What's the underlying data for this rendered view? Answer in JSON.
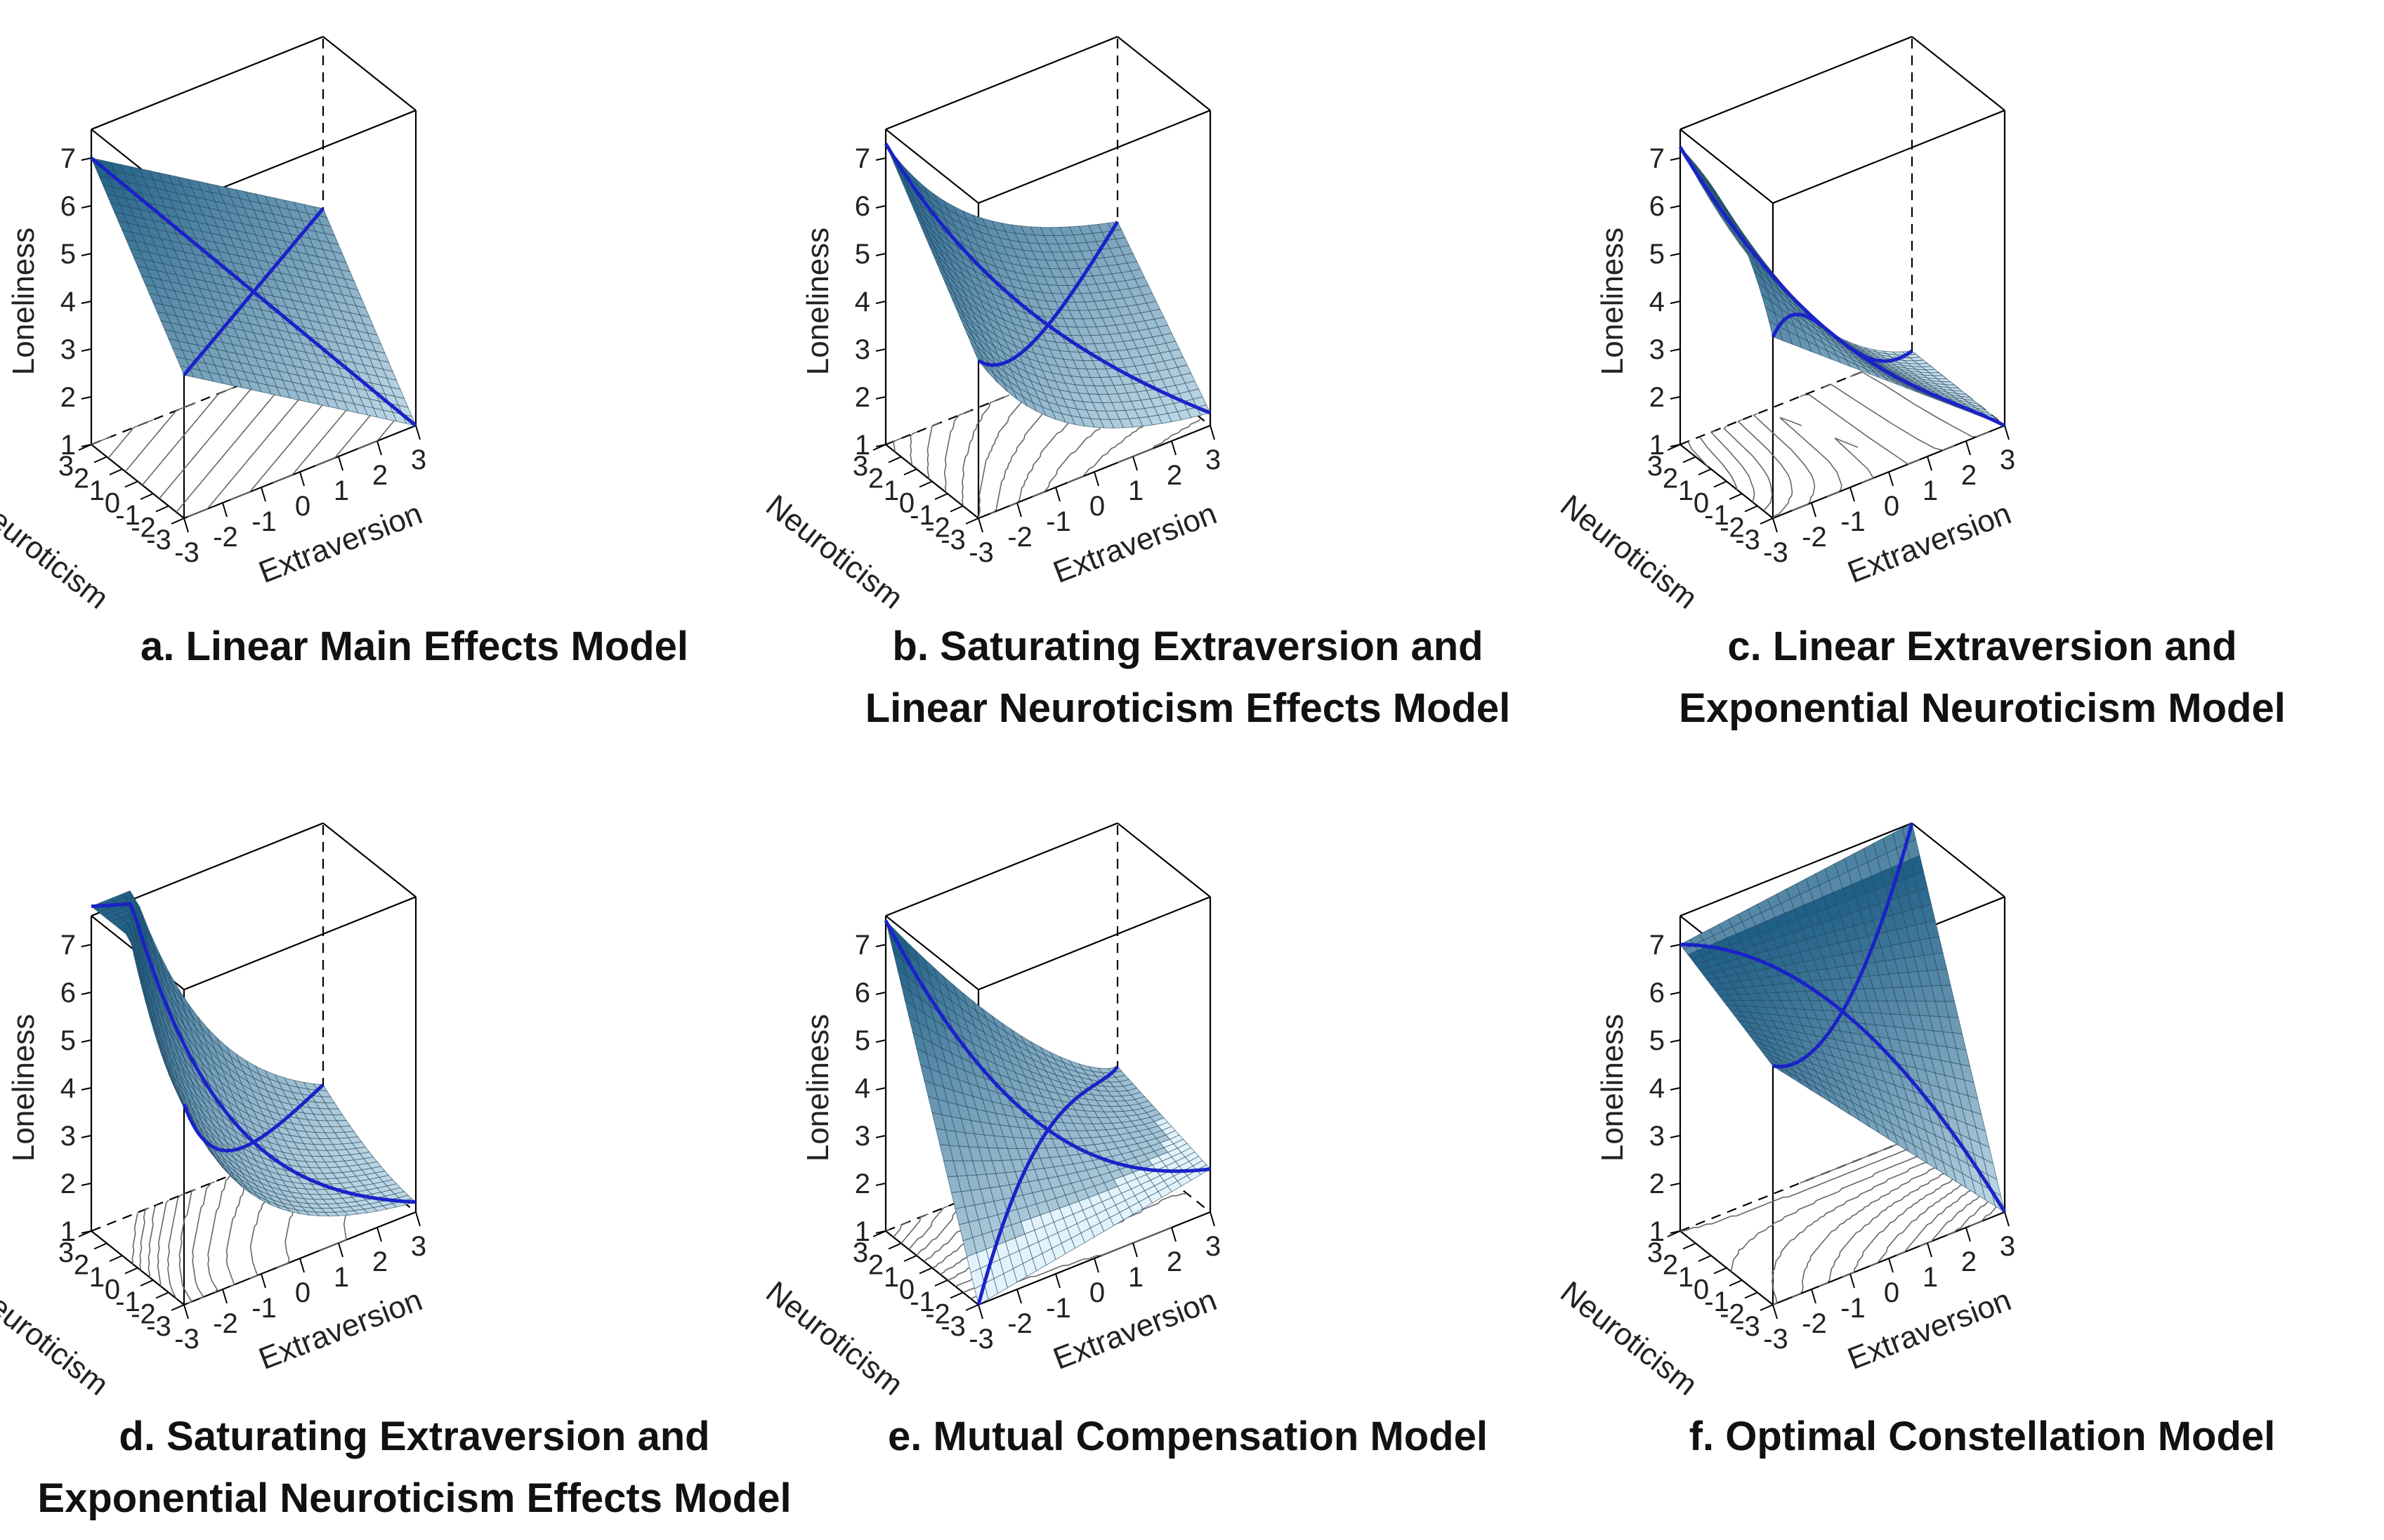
{
  "figure": {
    "panels_count": 6,
    "grid": "2x3"
  },
  "style": {
    "surface_dark": "#1f5f86",
    "surface_light": "#e3f3fb",
    "mesh_line": "#24475e",
    "curve_color": "#1a22c8",
    "box_line": "#000000",
    "contour_line": "#666666"
  },
  "chart_data": [
    {
      "type": "surface3d",
      "panel": "a",
      "title": "a. Linear Main Effects Model",
      "title_lines": [
        "a. Linear Main Effects Model"
      ],
      "zlabel": "Loneliness",
      "xlabel": "Extraversion",
      "ylabel": "Neuroticism",
      "z_ticks": [
        1,
        2,
        3,
        4,
        5,
        6,
        7
      ],
      "x_ticks": [
        -3,
        -2,
        -1,
        0,
        1,
        2,
        3
      ],
      "y_ticks": [
        3,
        2,
        1,
        0,
        -1,
        -2,
        -3
      ],
      "xlim": [
        -3,
        3
      ],
      "ylim": [
        -3,
        3
      ],
      "zlim": [
        1,
        7
      ],
      "model": "linear",
      "corner_values": {
        "E-3_N-3": 4.0,
        "E3_N-3": 1.0,
        "E-3_N3": 7.0,
        "E3_N3": 4.0
      }
    },
    {
      "type": "surface3d",
      "panel": "b",
      "title": "b. Saturating Extraversion and Linear Neuroticism Effects Model",
      "title_lines": [
        "b. Saturating Extraversion and",
        "Linear Neuroticism Effects Model"
      ],
      "zlabel": "Loneliness",
      "xlabel": "Extraversion",
      "ylabel": "Neuroticism",
      "z_ticks": [
        1,
        2,
        3,
        4,
        5,
        6,
        7
      ],
      "x_ticks": [
        -3,
        -2,
        -1,
        0,
        1,
        2,
        3
      ],
      "y_ticks": [
        3,
        2,
        1,
        0,
        -1,
        -2,
        -3
      ],
      "xlim": [
        -3,
        3
      ],
      "ylim": [
        -3,
        3
      ],
      "zlim": [
        1,
        7
      ],
      "model": "saturating_extraversion_linear_neuroticism",
      "corner_values": {
        "E-3_N-3": 4.3,
        "E3_N-3": 1.0,
        "E-3_N3": 7.4,
        "E3_N3": 4.2
      }
    },
    {
      "type": "surface3d",
      "panel": "c",
      "title": "c. Linear Extraversion and Exponential Neuroticism Model",
      "title_lines": [
        "c. Linear Extraversion and",
        "Exponential Neuroticism Model"
      ],
      "zlabel": "Loneliness",
      "xlabel": "Extraversion",
      "ylabel": "Neuroticism",
      "z_ticks": [
        1,
        2,
        3,
        4,
        5,
        6,
        7
      ],
      "x_ticks": [
        -3,
        -2,
        -1,
        0,
        1,
        2,
        3
      ],
      "y_ticks": [
        3,
        2,
        1,
        0,
        -1,
        -2,
        -3
      ],
      "xlim": [
        -3,
        3
      ],
      "ylim": [
        -3,
        3
      ],
      "zlim": [
        1,
        7
      ],
      "model": "linear_extraversion_exponential_neuroticism",
      "corner_values": {
        "E-3_N-3": 5.0,
        "E3_N-3": 1.0,
        "E-3_N3": 7.6,
        "E3_N3": 6.6
      }
    },
    {
      "type": "surface3d",
      "panel": "d",
      "title": "d. Saturating Extraversion and Exponential Neuroticism Effects Model",
      "title_lines": [
        "d. Saturating Extraversion and",
        "Exponential Neuroticism Effects Model"
      ],
      "zlabel": "Loneliness",
      "xlabel": "Extraversion",
      "ylabel": "Neuroticism",
      "z_ticks": [
        1,
        2,
        3,
        4,
        5,
        6,
        7
      ],
      "x_ticks": [
        -3,
        -2,
        -1,
        0,
        1,
        2,
        3
      ],
      "y_ticks": [
        3,
        2,
        1,
        0,
        -1,
        -2,
        -3
      ],
      "xlim": [
        -3,
        3
      ],
      "ylim": [
        -3,
        3
      ],
      "zlim": [
        1,
        7
      ],
      "model": "saturating_extraversion_exponential_neuroticism",
      "corner_values": {
        "E-3_N-3": 5.2,
        "E3_N-3": 1.0,
        "E-3_N3": 7.4,
        "E3_N3": 6.2
      }
    },
    {
      "type": "surface3d",
      "panel": "e",
      "title": "e. Mutual Compensation Model",
      "title_lines": [
        "e. Mutual Compensation Model"
      ],
      "zlabel": "Loneliness",
      "xlabel": "Extraversion",
      "ylabel": "Neuroticism",
      "z_ticks": [
        1,
        2,
        3,
        4,
        5,
        6,
        7
      ],
      "x_ticks": [
        -3,
        -2,
        -1,
        0,
        1,
        2,
        3
      ],
      "y_ticks": [
        3,
        2,
        1,
        0,
        -1,
        -2,
        -3
      ],
      "xlim": [
        -3,
        3
      ],
      "ylim": [
        -3,
        3
      ],
      "zlim": [
        1,
        7
      ],
      "model": "mutual_compensation",
      "corner_values": {
        "E-3_N-3": 1.0,
        "E3_N-3": 1.5,
        "E-3_N3": 7.5,
        "E3_N3": 2.2
      }
    },
    {
      "type": "surface3d",
      "panel": "f",
      "title": "f. Optimal Constellation Model",
      "title_lines": [
        "f. Optimal Constellation Model"
      ],
      "zlabel": "Loneliness",
      "xlabel": "Extraversion",
      "ylabel": "Neuroticism",
      "z_ticks": [
        1,
        2,
        3,
        4,
        5,
        6,
        7
      ],
      "x_ticks": [
        -3,
        -2,
        -1,
        0,
        1,
        2,
        3
      ],
      "y_ticks": [
        3,
        2,
        1,
        0,
        -1,
        -2,
        -3
      ],
      "xlim": [
        -3,
        3
      ],
      "ylim": [
        -3,
        3
      ],
      "zlim": [
        1,
        7
      ],
      "model": "optimal_constellation",
      "corner_values": {
        "E-3_N-3": 6.0,
        "E3_N-3": 1.0,
        "E-3_N3": 7.0,
        "E3_N3": 7.6
      }
    }
  ]
}
